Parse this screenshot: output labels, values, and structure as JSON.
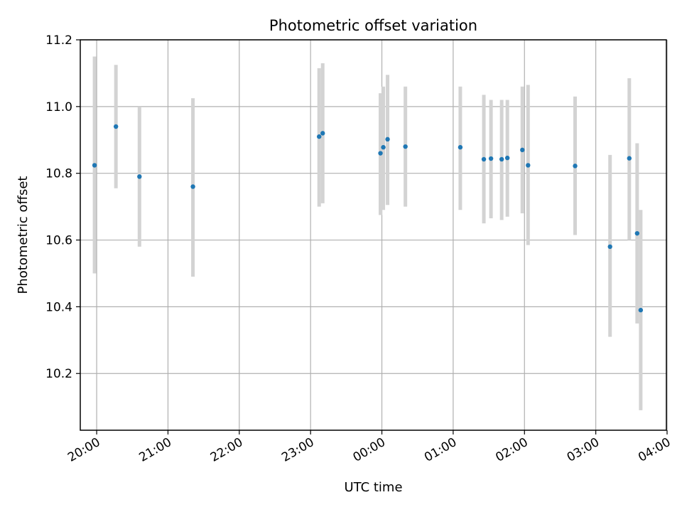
{
  "chart_data": {
    "type": "scatter",
    "title": "Photometric offset variation",
    "xlabel": "UTC time",
    "ylabel": "Photometric offset",
    "x_unit": "UTC time (hours, after midnight continuing past 24)",
    "xlim": [
      19.77,
      27.99
    ],
    "ylim": [
      10.03,
      11.2
    ],
    "x_ticks": [
      20,
      21,
      22,
      23,
      24,
      25,
      26,
      27,
      28
    ],
    "x_tick_labels": [
      "20:00",
      "21:00",
      "22:00",
      "23:00",
      "00:00",
      "01:00",
      "02:00",
      "03:00",
      "04:00"
    ],
    "y_ticks": [
      10.2,
      10.4,
      10.6,
      10.8,
      11.0,
      11.2
    ],
    "y_tick_labels": [
      "10.2",
      "10.4",
      "10.6",
      "10.8",
      "11.0",
      "11.2"
    ],
    "grid": true,
    "marker_color": "#1f77b4",
    "errorbar_color": "#d3d3d3",
    "points": [
      {
        "x": 19.97,
        "y": 10.824,
        "err_low": 10.5,
        "err_high": 11.15
      },
      {
        "x": 20.27,
        "y": 10.94,
        "err_low": 10.755,
        "err_high": 11.125
      },
      {
        "x": 20.6,
        "y": 10.79,
        "err_low": 10.58,
        "err_high": 11.0
      },
      {
        "x": 21.35,
        "y": 10.76,
        "err_low": 10.49,
        "err_high": 11.025
      },
      {
        "x": 23.12,
        "y": 10.91,
        "err_low": 10.7,
        "err_high": 11.115
      },
      {
        "x": 23.17,
        "y": 10.92,
        "err_low": 10.71,
        "err_high": 11.13
      },
      {
        "x": 23.98,
        "y": 10.86,
        "err_low": 10.675,
        "err_high": 11.04
      },
      {
        "x": 24.02,
        "y": 10.878,
        "err_low": 10.69,
        "err_high": 11.06
      },
      {
        "x": 24.08,
        "y": 10.902,
        "err_low": 10.705,
        "err_high": 11.095
      },
      {
        "x": 24.33,
        "y": 10.88,
        "err_low": 10.7,
        "err_high": 11.06
      },
      {
        "x": 25.1,
        "y": 10.878,
        "err_low": 10.69,
        "err_high": 11.06
      },
      {
        "x": 25.43,
        "y": 10.842,
        "err_low": 10.65,
        "err_high": 11.035
      },
      {
        "x": 25.53,
        "y": 10.844,
        "err_low": 10.665,
        "err_high": 11.02
      },
      {
        "x": 25.68,
        "y": 10.842,
        "err_low": 10.66,
        "err_high": 11.02
      },
      {
        "x": 25.76,
        "y": 10.846,
        "err_low": 10.67,
        "err_high": 11.02
      },
      {
        "x": 25.97,
        "y": 10.87,
        "err_low": 10.68,
        "err_high": 11.06
      },
      {
        "x": 26.05,
        "y": 10.824,
        "err_low": 10.585,
        "err_high": 11.065
      },
      {
        "x": 26.71,
        "y": 10.822,
        "err_low": 10.615,
        "err_high": 11.03
      },
      {
        "x": 27.2,
        "y": 10.58,
        "err_low": 10.31,
        "err_high": 10.855
      },
      {
        "x": 27.47,
        "y": 10.845,
        "err_low": 10.6,
        "err_high": 11.085
      },
      {
        "x": 27.58,
        "y": 10.62,
        "err_low": 10.35,
        "err_high": 10.89
      },
      {
        "x": 27.63,
        "y": 10.39,
        "err_low": 10.09,
        "err_high": 10.69
      }
    ]
  }
}
